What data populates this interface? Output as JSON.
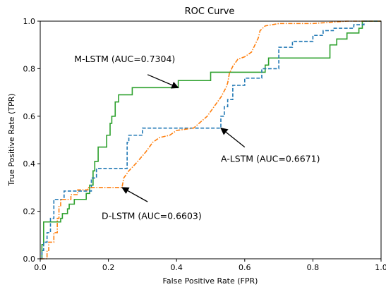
{
  "chart_data": {
    "type": "line",
    "title": "ROC Curve",
    "xlabel": "False Positive Rate (FPR)",
    "ylabel": "True Positive Rate (TPR)",
    "xlim": [
      0,
      1
    ],
    "ylim": [
      0,
      1
    ],
    "x_ticks": [
      "0.0",
      "0.2",
      "0.4",
      "0.6",
      "0.8",
      "1.0"
    ],
    "y_ticks": [
      "0.0",
      "0.2",
      "0.4",
      "0.6",
      "0.8",
      "1.0"
    ],
    "grid": false,
    "series": [
      {
        "key": "m-lstm",
        "color": "#2ca02c",
        "dash": "solid",
        "points": [
          [
            0,
            0
          ],
          [
            0.005,
            0
          ],
          [
            0.005,
            0.06
          ],
          [
            0.01,
            0.06
          ],
          [
            0.01,
            0.155
          ],
          [
            0.06,
            0.155
          ],
          [
            0.06,
            0.17
          ],
          [
            0.065,
            0.17
          ],
          [
            0.065,
            0.19
          ],
          [
            0.08,
            0.19
          ],
          [
            0.08,
            0.21
          ],
          [
            0.085,
            0.21
          ],
          [
            0.085,
            0.23
          ],
          [
            0.1,
            0.23
          ],
          [
            0.1,
            0.25
          ],
          [
            0.135,
            0.25
          ],
          [
            0.135,
            0.275
          ],
          [
            0.145,
            0.275
          ],
          [
            0.145,
            0.31
          ],
          [
            0.155,
            0.31
          ],
          [
            0.155,
            0.37
          ],
          [
            0.16,
            0.37
          ],
          [
            0.16,
            0.41
          ],
          [
            0.17,
            0.41
          ],
          [
            0.17,
            0.47
          ],
          [
            0.195,
            0.47
          ],
          [
            0.195,
            0.52
          ],
          [
            0.205,
            0.52
          ],
          [
            0.205,
            0.57
          ],
          [
            0.21,
            0.57
          ],
          [
            0.21,
            0.6
          ],
          [
            0.22,
            0.6
          ],
          [
            0.22,
            0.66
          ],
          [
            0.23,
            0.66
          ],
          [
            0.23,
            0.69
          ],
          [
            0.27,
            0.69
          ],
          [
            0.27,
            0.72
          ],
          [
            0.405,
            0.72
          ],
          [
            0.405,
            0.75
          ],
          [
            0.5,
            0.75
          ],
          [
            0.5,
            0.785
          ],
          [
            0.66,
            0.785
          ],
          [
            0.66,
            0.815
          ],
          [
            0.67,
            0.815
          ],
          [
            0.67,
            0.845
          ],
          [
            0.85,
            0.845
          ],
          [
            0.85,
            0.9
          ],
          [
            0.87,
            0.9
          ],
          [
            0.87,
            0.925
          ],
          [
            0.9,
            0.925
          ],
          [
            0.9,
            0.95
          ],
          [
            0.935,
            0.95
          ],
          [
            0.935,
            0.97
          ],
          [
            0.945,
            0.97
          ],
          [
            0.945,
            1.0
          ],
          [
            1.0,
            1.0
          ]
        ]
      },
      {
        "key": "a-lstm",
        "color": "#1f77b4",
        "dash": "dashed",
        "points": [
          [
            0,
            0
          ],
          [
            0.005,
            0
          ],
          [
            0.005,
            0.035
          ],
          [
            0.01,
            0.035
          ],
          [
            0.01,
            0.07
          ],
          [
            0.02,
            0.07
          ],
          [
            0.02,
            0.11
          ],
          [
            0.03,
            0.11
          ],
          [
            0.03,
            0.17
          ],
          [
            0.04,
            0.17
          ],
          [
            0.04,
            0.25
          ],
          [
            0.07,
            0.25
          ],
          [
            0.07,
            0.285
          ],
          [
            0.15,
            0.285
          ],
          [
            0.15,
            0.34
          ],
          [
            0.165,
            0.34
          ],
          [
            0.165,
            0.38
          ],
          [
            0.255,
            0.38
          ],
          [
            0.255,
            0.49
          ],
          [
            0.26,
            0.49
          ],
          [
            0.26,
            0.52
          ],
          [
            0.3,
            0.52
          ],
          [
            0.3,
            0.55
          ],
          [
            0.53,
            0.55
          ],
          [
            0.53,
            0.6
          ],
          [
            0.54,
            0.6
          ],
          [
            0.54,
            0.64
          ],
          [
            0.55,
            0.64
          ],
          [
            0.55,
            0.67
          ],
          [
            0.565,
            0.67
          ],
          [
            0.565,
            0.73
          ],
          [
            0.6,
            0.73
          ],
          [
            0.6,
            0.76
          ],
          [
            0.65,
            0.76
          ],
          [
            0.65,
            0.8
          ],
          [
            0.7,
            0.8
          ],
          [
            0.7,
            0.89
          ],
          [
            0.74,
            0.89
          ],
          [
            0.74,
            0.915
          ],
          [
            0.8,
            0.915
          ],
          [
            0.8,
            0.94
          ],
          [
            0.83,
            0.94
          ],
          [
            0.83,
            0.96
          ],
          [
            0.86,
            0.96
          ],
          [
            0.86,
            0.97
          ],
          [
            0.92,
            0.97
          ],
          [
            0.92,
            0.985
          ],
          [
            0.95,
            0.985
          ],
          [
            0.95,
            1.0
          ],
          [
            1.0,
            1.0
          ]
        ]
      },
      {
        "key": "d-lstm",
        "color": "#ff7f0e",
        "dash": "dashdot",
        "points": [
          [
            0,
            0
          ],
          [
            0.02,
            0
          ],
          [
            0.02,
            0.035
          ],
          [
            0.025,
            0.035
          ],
          [
            0.025,
            0.07
          ],
          [
            0.04,
            0.07
          ],
          [
            0.04,
            0.11
          ],
          [
            0.05,
            0.11
          ],
          [
            0.05,
            0.17
          ],
          [
            0.055,
            0.17
          ],
          [
            0.055,
            0.22
          ],
          [
            0.06,
            0.22
          ],
          [
            0.06,
            0.25
          ],
          [
            0.09,
            0.25
          ],
          [
            0.09,
            0.27
          ],
          [
            0.11,
            0.27
          ],
          [
            0.11,
            0.29
          ],
          [
            0.14,
            0.29
          ],
          [
            0.14,
            0.3
          ],
          [
            0.24,
            0.3
          ],
          [
            0.245,
            0.34
          ],
          [
            0.26,
            0.37
          ],
          [
            0.28,
            0.4
          ],
          [
            0.31,
            0.45
          ],
          [
            0.33,
            0.49
          ],
          [
            0.35,
            0.51
          ],
          [
            0.38,
            0.52
          ],
          [
            0.4,
            0.54
          ],
          [
            0.45,
            0.55
          ],
          [
            0.49,
            0.6
          ],
          [
            0.51,
            0.64
          ],
          [
            0.53,
            0.68
          ],
          [
            0.545,
            0.72
          ],
          [
            0.55,
            0.74
          ],
          [
            0.555,
            0.78
          ],
          [
            0.565,
            0.81
          ],
          [
            0.58,
            0.84
          ],
          [
            0.6,
            0.85
          ],
          [
            0.62,
            0.87
          ],
          [
            0.63,
            0.9
          ],
          [
            0.64,
            0.93
          ],
          [
            0.645,
            0.96
          ],
          [
            0.66,
            0.98
          ],
          [
            0.7,
            0.99
          ],
          [
            0.8,
            0.99
          ],
          [
            0.9,
            1.0
          ],
          [
            1.0,
            1.0
          ]
        ]
      }
    ],
    "annotations": [
      {
        "key": "m-lstm",
        "text": "M-LSTM (AUC=0.7304)",
        "text_at": [
          0.1,
          0.84
        ],
        "arrow_from": [
          0.315,
          0.775
        ],
        "arrow_to": [
          0.405,
          0.72
        ]
      },
      {
        "key": "a-lstm",
        "text": "A-LSTM (AUC=0.6671)",
        "text_at": [
          0.53,
          0.42
        ],
        "arrow_from": [
          0.6,
          0.47
        ],
        "arrow_to": [
          0.53,
          0.55
        ]
      },
      {
        "key": "d-lstm",
        "text": "D-LSTM (AUC=0.6603)",
        "text_at": [
          0.18,
          0.18
        ],
        "arrow_from": [
          0.315,
          0.24
        ],
        "arrow_to": [
          0.24,
          0.3
        ]
      }
    ]
  }
}
